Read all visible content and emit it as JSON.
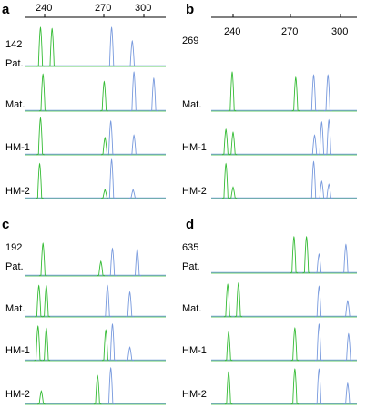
{
  "axis_ticks": [
    "240",
    "270",
    "300"
  ],
  "colors": {
    "green": "#33bb33",
    "blue": "#7799dd"
  },
  "panels": [
    {
      "letter": "a",
      "sample_id": "142",
      "show_axis": true,
      "rows": [
        {
          "label": "Pat.",
          "peaks": [
            {
              "pos": 237.5,
              "h": 0.95,
              "c": "green"
            },
            {
              "pos": 244.5,
              "h": 0.92,
              "c": "green"
            },
            {
              "pos": 280.5,
              "h": 0.95,
              "c": "blue"
            },
            {
              "pos": 293,
              "h": 0.62,
              "c": "blue"
            }
          ]
        },
        {
          "label": "Mat.",
          "peaks": [
            {
              "pos": 239,
              "h": 0.9,
              "c": "green"
            },
            {
              "pos": 276,
              "h": 0.72,
              "c": "green"
            },
            {
              "pos": 294,
              "h": 0.95,
              "c": "blue"
            },
            {
              "pos": 306,
              "h": 0.8,
              "c": "blue"
            }
          ]
        },
        {
          "label": "HM-1",
          "peaks": [
            {
              "pos": 237.5,
              "h": 0.9,
              "c": "green"
            },
            {
              "pos": 276.5,
              "h": 0.42,
              "c": "green"
            },
            {
              "pos": 280,
              "h": 0.82,
              "c": "blue"
            },
            {
              "pos": 294,
              "h": 0.48,
              "c": "blue"
            }
          ]
        },
        {
          "label": "HM-2",
          "peaks": [
            {
              "pos": 237,
              "h": 0.85,
              "c": "green"
            },
            {
              "pos": 276.5,
              "h": 0.22,
              "c": "green"
            },
            {
              "pos": 280.5,
              "h": 0.95,
              "c": "blue"
            },
            {
              "pos": 293.5,
              "h": 0.22,
              "c": "blue"
            }
          ]
        }
      ]
    },
    {
      "letter": "b",
      "sample_id": "269",
      "show_axis": true,
      "rows": [
        {
          "label": "Mat.",
          "peaks": [
            {
              "pos": 239.5,
              "h": 0.95,
              "c": "green"
            },
            {
              "pos": 275,
              "h": 0.82,
              "c": "green"
            },
            {
              "pos": 285,
              "h": 0.88,
              "c": "blue"
            },
            {
              "pos": 293,
              "h": 0.88,
              "c": "blue"
            }
          ]
        },
        {
          "label": "HM-1",
          "peaks": [
            {
              "pos": 236,
              "h": 0.62,
              "c": "green"
            },
            {
              "pos": 240,
              "h": 0.55,
              "c": "green"
            },
            {
              "pos": 285.5,
              "h": 0.48,
              "c": "blue"
            },
            {
              "pos": 289.5,
              "h": 0.8,
              "c": "blue"
            },
            {
              "pos": 293.5,
              "h": 0.85,
              "c": "blue"
            }
          ]
        },
        {
          "label": "HM-2",
          "peaks": [
            {
              "pos": 236,
              "h": 0.85,
              "c": "green"
            },
            {
              "pos": 240,
              "h": 0.28,
              "c": "green"
            },
            {
              "pos": 285,
              "h": 0.9,
              "c": "blue"
            },
            {
              "pos": 289.5,
              "h": 0.42,
              "c": "blue"
            },
            {
              "pos": 293.5,
              "h": 0.35,
              "c": "blue"
            }
          ]
        }
      ]
    },
    {
      "letter": "c",
      "sample_id": "192",
      "show_axis": false,
      "rows": [
        {
          "label": "Pat.",
          "peaks": [
            {
              "pos": 239,
              "h": 0.85,
              "c": "green"
            },
            {
              "pos": 274,
              "h": 0.38,
              "c": "green"
            },
            {
              "pos": 281,
              "h": 0.72,
              "c": "blue"
            },
            {
              "pos": 296,
              "h": 0.7,
              "c": "blue"
            }
          ]
        },
        {
          "label": "Mat.",
          "peaks": [
            {
              "pos": 236.5,
              "h": 0.82,
              "c": "green"
            },
            {
              "pos": 241,
              "h": 0.82,
              "c": "green"
            },
            {
              "pos": 278,
              "h": 0.82,
              "c": "blue"
            },
            {
              "pos": 291.5,
              "h": 0.65,
              "c": "blue"
            }
          ]
        },
        {
          "label": "HM-1",
          "peaks": [
            {
              "pos": 236,
              "h": 0.9,
              "c": "green"
            },
            {
              "pos": 241,
              "h": 0.85,
              "c": "green"
            },
            {
              "pos": 277,
              "h": 0.8,
              "c": "green"
            },
            {
              "pos": 281,
              "h": 0.95,
              "c": "blue"
            },
            {
              "pos": 291.5,
              "h": 0.35,
              "c": "blue"
            }
          ]
        },
        {
          "label": "HM-2",
          "peaks": [
            {
              "pos": 238,
              "h": 0.35,
              "c": "green"
            },
            {
              "pos": 272,
              "h": 0.75,
              "c": "green"
            },
            {
              "pos": 280,
              "h": 0.95,
              "c": "blue"
            }
          ]
        }
      ]
    },
    {
      "letter": "d",
      "sample_id": "635",
      "show_axis": false,
      "rows": [
        {
          "label": "Pat.",
          "peaks": [
            {
              "pos": 274,
              "h": 0.95,
              "c": "green"
            },
            {
              "pos": 281,
              "h": 0.95,
              "c": "green"
            },
            {
              "pos": 288,
              "h": 0.5,
              "c": "blue"
            },
            {
              "pos": 303,
              "h": 0.75,
              "c": "blue"
            }
          ]
        },
        {
          "label": "Mat.",
          "peaks": [
            {
              "pos": 237,
              "h": 0.85,
              "c": "green"
            },
            {
              "pos": 243,
              "h": 0.88,
              "c": "green"
            },
            {
              "pos": 288,
              "h": 0.8,
              "c": "blue"
            },
            {
              "pos": 304,
              "h": 0.42,
              "c": "blue"
            }
          ]
        },
        {
          "label": "HM-1",
          "peaks": [
            {
              "pos": 237.5,
              "h": 0.75,
              "c": "green"
            },
            {
              "pos": 274.5,
              "h": 0.85,
              "c": "green"
            },
            {
              "pos": 288,
              "h": 0.95,
              "c": "blue"
            },
            {
              "pos": 304.5,
              "h": 0.7,
              "c": "blue"
            }
          ]
        },
        {
          "label": "HM-2",
          "peaks": [
            {
              "pos": 237.5,
              "h": 0.85,
              "c": "green"
            },
            {
              "pos": 274.5,
              "h": 0.92,
              "c": "green"
            },
            {
              "pos": 288,
              "h": 0.92,
              "c": "blue"
            },
            {
              "pos": 304,
              "h": 0.55,
              "c": "blue"
            }
          ]
        }
      ]
    }
  ]
}
